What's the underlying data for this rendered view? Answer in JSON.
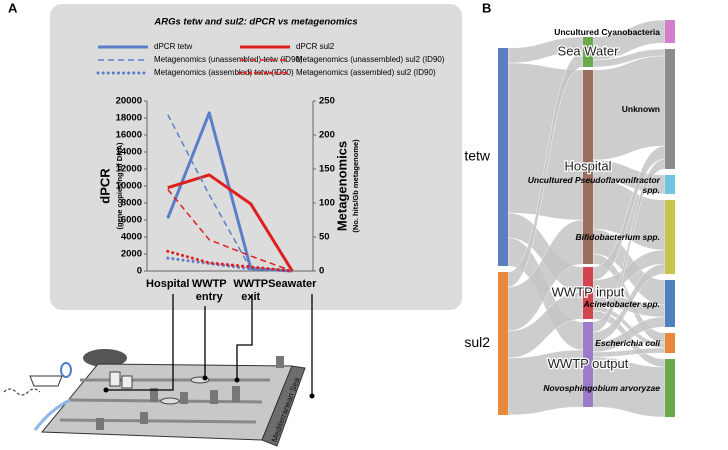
{
  "panel_labels": [
    "A",
    "B"
  ],
  "illustration": {
    "sea_label": "Mediterranean Sea"
  },
  "chart_data": [
    {
      "type": "line",
      "title": "ARGs tetw and sul2:  dPCR vs metagenomics",
      "y_label": "dPCR",
      "y_sublabel": "(gene copies/ng of DNA)",
      "y2_label": "Metagenomics",
      "y2_sublabel": "(No. hits/Gb metagenome)",
      "categories": [
        "Hospital",
        "WWTP entry",
        "WWTP exit",
        "Seawater"
      ],
      "ylim": [
        0,
        20000
      ],
      "yticks": [
        0,
        2000,
        4000,
        6000,
        8000,
        10000,
        12000,
        14000,
        16000,
        18000,
        20000
      ],
      "y2lim": [
        0,
        250
      ],
      "y2ticks": [
        0,
        50,
        100,
        150,
        200,
        250
      ],
      "series": [
        {
          "name": "dPCR tetw",
          "color": "#5b7fc6",
          "style": "solid",
          "values": [
            6200,
            18600,
            300,
            0
          ]
        },
        {
          "name": "dPCR sul2",
          "color": "#e01e1e",
          "style": "solid",
          "values": [
            9800,
            11300,
            7900,
            0
          ]
        },
        {
          "name": "Metagenomics (unassembled) tetw (ID90)",
          "color": "#5b7fc6",
          "style": "dashed",
          "axis": "y2",
          "values": [
            230,
            112,
            3,
            0
          ]
        },
        {
          "name": "Metagenomics (unassembled) sul2 (ID90)",
          "color": "#e01e1e",
          "style": "dashed",
          "axis": "y2",
          "values": [
            120,
            46,
            22,
            0
          ]
        },
        {
          "name": "Metagenomics (assembled) tetw (ID90)",
          "color": "#5b7fc6",
          "style": "dotted",
          "axis": "y2",
          "values": [
            19,
            11,
            3,
            0
          ]
        },
        {
          "name": "Metagenomics (assembled) sul2 (ID90)",
          "color": "#e01e1e",
          "style": "dotted",
          "axis": "y2",
          "values": [
            29,
            12,
            6,
            0
          ]
        }
      ]
    },
    {
      "type": "sankey",
      "nodes": [
        {
          "name": "tetw",
          "color": "#5b7fc1"
        },
        {
          "name": "sul2",
          "color": "#e8883a"
        },
        {
          "name": "Sea Water",
          "color": "#6aaa4b"
        },
        {
          "name": "Hospital",
          "color": "#9b6e5e"
        },
        {
          "name": "WWTP input",
          "color": "#d0454f"
        },
        {
          "name": "WWTP output",
          "color": "#9d7bc9"
        },
        {
          "name": "Uncultured Cyanobacteria",
          "color": "#d37ec9"
        },
        {
          "name": "Unknown",
          "color": "#8c8c8c"
        },
        {
          "name": "Uncultured Pseudoflavonifractor spp.",
          "color": "#6ec6e0",
          "italic": true
        },
        {
          "name": "Bifidobacterium spp.",
          "color": "#c9c54a",
          "italic": true
        },
        {
          "name": "Acinetobacter spp.",
          "color": "#4f7fbf",
          "italic": true
        },
        {
          "name": "Escherichia coli",
          "color": "#e8883a",
          "italic": true
        },
        {
          "name": "Novosphingobium arvoryzae",
          "color": "#6aaa4b",
          "italic": true
        }
      ],
      "links": [
        {
          "source": 0,
          "target": 2,
          "value": 15
        },
        {
          "source": 0,
          "target": 3,
          "value": 150
        },
        {
          "source": 0,
          "target": 4,
          "value": 25
        },
        {
          "source": 0,
          "target": 5,
          "value": 28
        },
        {
          "source": 1,
          "target": 2,
          "value": 15
        },
        {
          "source": 1,
          "target": 3,
          "value": 44
        },
        {
          "source": 1,
          "target": 4,
          "value": 27
        },
        {
          "source": 1,
          "target": 5,
          "value": 57
        },
        {
          "source": 2,
          "target": 6,
          "value": 23
        },
        {
          "source": 2,
          "target": 7,
          "value": 7
        },
        {
          "source": 3,
          "target": 7,
          "value": 90
        },
        {
          "source": 3,
          "target": 8,
          "value": 19
        },
        {
          "source": 3,
          "target": 9,
          "value": 50
        },
        {
          "source": 3,
          "target": 10,
          "value": 25
        },
        {
          "source": 3,
          "target": 11,
          "value": 10
        },
        {
          "source": 4,
          "target": 7,
          "value": 13
        },
        {
          "source": 4,
          "target": 9,
          "value": 14
        },
        {
          "source": 4,
          "target": 10,
          "value": 12
        },
        {
          "source": 4,
          "target": 11,
          "value": 5
        },
        {
          "source": 4,
          "target": 12,
          "value": 8
        },
        {
          "source": 5,
          "target": 7,
          "value": 10
        },
        {
          "source": 5,
          "target": 9,
          "value": 10
        },
        {
          "source": 5,
          "target": 10,
          "value": 10
        },
        {
          "source": 5,
          "target": 11,
          "value": 5
        },
        {
          "source": 5,
          "target": 12,
          "value": 50
        }
      ]
    }
  ]
}
